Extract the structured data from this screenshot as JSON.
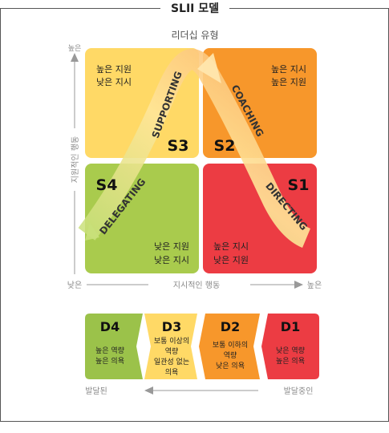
{
  "title": "SLII 모델",
  "leadership_label": "리더십 유형",
  "y_axis": {
    "label": "지원적인 행동",
    "high": "높은",
    "low": "낮은"
  },
  "x_axis": {
    "label": "지시적인 행동",
    "low": "낮은",
    "high": "높은"
  },
  "quadrants": [
    {
      "code": "S3",
      "name": "SUPPORTING",
      "line1": "높은 지원",
      "line2": "낮은 지시",
      "color": "#FFD966"
    },
    {
      "code": "S2",
      "name": "COACHING",
      "line1": "높은 지시",
      "line2": "높은 지원",
      "color": "#F7972B"
    },
    {
      "code": "S4",
      "name": "DELEGATING",
      "line1": "낮은 지원",
      "line2": "낮은 지시",
      "color": "#A9CB4D"
    },
    {
      "code": "S1",
      "name": "DIRECTING",
      "line1": "높은 지시",
      "line2": "낮은 지원",
      "color": "#EC3C43"
    }
  ],
  "development": [
    {
      "code": "D4",
      "lines": [
        "높은 역량",
        "높은 의욕"
      ],
      "color": "#9BC24A"
    },
    {
      "code": "D3",
      "lines": [
        "보통 이상의",
        "역량",
        "일관성 없는",
        "의욕"
      ],
      "color": "#FFD966"
    },
    {
      "code": "D2",
      "lines": [
        "보통 이하의",
        "역량",
        "낮은 의욕"
      ],
      "color": "#F7972B"
    },
    {
      "code": "D1",
      "lines": [
        "낮은 역량",
        "높은 의욕"
      ],
      "color": "#EC3C43"
    }
  ],
  "dev_axis": {
    "left": "발달된",
    "right": "발달중인"
  }
}
